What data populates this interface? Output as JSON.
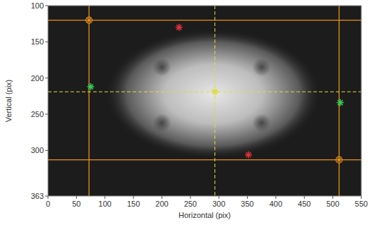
{
  "chart_data": {
    "type": "image",
    "xlabel": "Horizontal (pix)",
    "ylabel": "Vertical (pix)",
    "xlim": [
      0,
      550
    ],
    "ylim": [
      100,
      363
    ],
    "xticks": [
      0,
      50,
      100,
      150,
      200,
      250,
      300,
      350,
      400,
      450,
      500,
      550
    ],
    "yticks": [
      100,
      150,
      200,
      250,
      300,
      363
    ],
    "grid": false,
    "image": {
      "beam_center": [
        290,
        222
      ],
      "beam_radius": [
        190,
        90
      ],
      "dark_spots_x": [
        200,
        375,
        200,
        375
      ],
      "dark_spots_y": [
        185,
        185,
        262,
        262
      ]
    },
    "hlines": {
      "color": "#e8901c",
      "values": [
        120,
        313
      ]
    },
    "vlines": {
      "color": "#e8901c",
      "values": [
        72,
        511
      ]
    },
    "crosshair": {
      "color": "#e0dc3a",
      "line_style": "dashed",
      "x": 293,
      "y": 219
    },
    "series": [
      {
        "color": "#e8901c",
        "marker": "circle-cross",
        "x": [
          72,
          511
        ],
        "values": [
          120,
          313
        ]
      },
      {
        "color": "#e0303a",
        "marker": "star",
        "x": [
          230,
          352
        ],
        "values": [
          130,
          306
        ]
      },
      {
        "color": "#33cc55",
        "marker": "star",
        "x": [
          75,
          513
        ],
        "values": [
          212,
          234
        ]
      },
      {
        "color": "#e0dc3a",
        "marker": "star",
        "x": [
          293
        ],
        "values": [
          219
        ]
      }
    ]
  }
}
